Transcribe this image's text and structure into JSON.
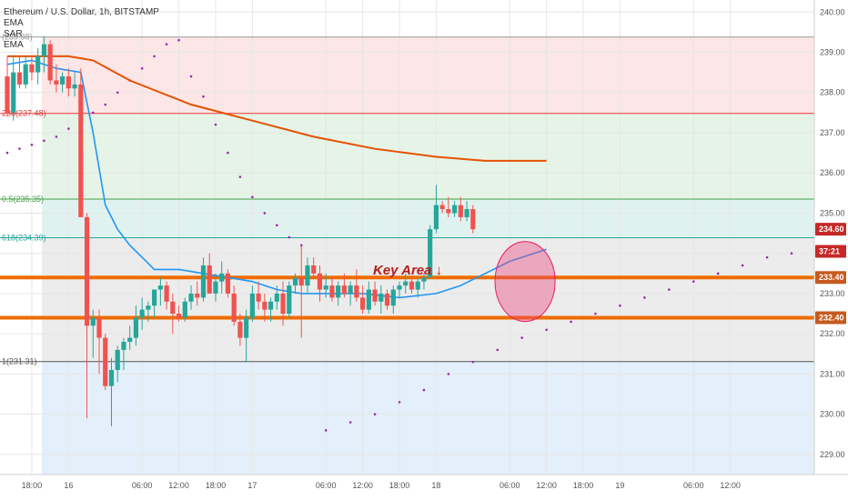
{
  "header": {
    "symbol_title": "Ethereum / U.S. Dollar, 1h, BITSTAMP",
    "indicators": [
      "EMA",
      "SAR",
      "EMA"
    ]
  },
  "annotation": {
    "text": "Key Area ↓",
    "color": "#b71c1c"
  },
  "price_badges": [
    {
      "label": "234.60",
      "value": 234.6,
      "bg": "#c62828",
      "fg": "#ffffff"
    },
    {
      "label": "37:21",
      "value": 234.05,
      "bg": "#c62828",
      "fg": "#ffffff"
    },
    {
      "label": "233.40",
      "value": 233.4,
      "bg": "#c65a1e",
      "fg": "#ffffff"
    },
    {
      "label": "232.40",
      "value": 232.4,
      "bg": "#c65a1e",
      "fg": "#ffffff"
    }
  ],
  "fib_levels": [
    {
      "label": "(239.38)",
      "value": 239.38,
      "color": "#999999"
    },
    {
      "label": "236(237.48)",
      "value": 237.48,
      "color": "#e53935"
    },
    {
      "label": "0.5(235.35)",
      "value": 235.35,
      "color": "#43a047"
    },
    {
      "label": "618(234.39)",
      "value": 234.39,
      "color": "#26a69a"
    },
    {
      "label": "1(231.31)",
      "value": 231.31,
      "color": "#555555"
    }
  ],
  "colors": {
    "up": "#26a69a",
    "down": "#ef5350",
    "ema_fast": "#2196f3",
    "ema_slow": "#e65100",
    "sar": "#9c27b0",
    "key_line": "#ef6c00",
    "circle_fill": "#ec407a",
    "circle_stroke": "#e91e63"
  },
  "chart_data": {
    "type": "candlestick",
    "title": "Ethereum / U.S. Dollar, 1h, BITSTAMP",
    "ylim": [
      228.5,
      240.3
    ],
    "x_range": [
      0,
      128
    ],
    "y_ticks": [
      "240.00",
      "239.00",
      "238.00",
      "237.00",
      "236.00",
      "235.00",
      "234.00",
      "233.00",
      "232.00",
      "231.00",
      "230.00",
      "229.00"
    ],
    "x_ticks": [
      {
        "label": "18:00",
        "x": 4
      },
      {
        "label": "16",
        "x": 10
      },
      {
        "label": "06:00",
        "x": 22
      },
      {
        "label": "12:00",
        "x": 28
      },
      {
        "label": "18:00",
        "x": 34
      },
      {
        "label": "17",
        "x": 40
      },
      {
        "label": "06:00",
        "x": 52
      },
      {
        "label": "12:00",
        "x": 58
      },
      {
        "label": "18:00",
        "x": 64
      },
      {
        "label": "18",
        "x": 70
      },
      {
        "label": "06:00",
        "x": 82
      },
      {
        "label": "12:00",
        "x": 88
      },
      {
        "label": "18:00",
        "x": 94
      },
      {
        "label": "19",
        "x": 100
      },
      {
        "label": "06:00",
        "x": 112
      },
      {
        "label": "12:00",
        "x": 118
      }
    ],
    "candles": [
      [
        238.4,
        238.9,
        237.4,
        237.5
      ],
      [
        237.5,
        238.9,
        237.3,
        238.5
      ],
      [
        238.5,
        238.9,
        238.1,
        238.2
      ],
      [
        238.2,
        238.9,
        238.1,
        238.7
      ],
      [
        238.7,
        238.9,
        238.3,
        238.5
      ],
      [
        238.5,
        239.1,
        238.2,
        238.9
      ],
      [
        238.9,
        239.4,
        238.5,
        239.2
      ],
      [
        239.2,
        239.3,
        238.2,
        238.3
      ],
      [
        238.3,
        238.7,
        238.0,
        238.2
      ],
      [
        238.2,
        238.5,
        238.0,
        238.4
      ],
      [
        238.4,
        238.6,
        237.9,
        238.1
      ],
      [
        238.1,
        238.5,
        237.9,
        238.2
      ],
      [
        238.2,
        238.6,
        235.0,
        234.9
      ],
      [
        234.9,
        235.0,
        229.9,
        232.2
      ],
      [
        232.2,
        232.6,
        231.4,
        232.4
      ],
      [
        232.4,
        232.6,
        231.0,
        231.9
      ],
      [
        231.9,
        232.0,
        230.6,
        230.7
      ],
      [
        230.7,
        231.4,
        229.7,
        231.1
      ],
      [
        231.1,
        231.7,
        230.8,
        231.6
      ],
      [
        231.6,
        231.9,
        231.1,
        231.8
      ],
      [
        231.8,
        232.2,
        231.6,
        231.9
      ],
      [
        231.9,
        232.7,
        231.7,
        232.4
      ],
      [
        232.4,
        232.9,
        232.1,
        232.6
      ],
      [
        232.6,
        232.8,
        232.3,
        232.7
      ],
      [
        232.7,
        233.1,
        232.4,
        233.1
      ],
      [
        233.1,
        233.4,
        232.7,
        233.2
      ],
      [
        233.2,
        233.3,
        232.6,
        232.8
      ],
      [
        232.8,
        233.0,
        232.0,
        232.5
      ],
      [
        232.5,
        232.7,
        232.3,
        232.4
      ],
      [
        232.4,
        232.9,
        232.3,
        232.8
      ],
      [
        232.8,
        233.2,
        232.6,
        233.0
      ],
      [
        233.0,
        233.3,
        232.7,
        232.9
      ],
      [
        232.9,
        233.9,
        232.8,
        233.7
      ],
      [
        233.7,
        234.0,
        233.0,
        233.0
      ],
      [
        233.0,
        233.5,
        232.8,
        233.3
      ],
      [
        233.3,
        233.8,
        233.0,
        233.5
      ],
      [
        233.5,
        233.6,
        232.9,
        233.0
      ],
      [
        233.0,
        233.2,
        232.2,
        232.3
      ],
      [
        232.3,
        232.5,
        231.7,
        231.9
      ],
      [
        231.9,
        232.6,
        231.3,
        232.4
      ],
      [
        232.4,
        233.2,
        232.3,
        233.0
      ],
      [
        233.0,
        233.3,
        232.6,
        232.8
      ],
      [
        232.8,
        233.0,
        232.3,
        232.6
      ],
      [
        232.6,
        232.9,
        232.3,
        232.8
      ],
      [
        232.8,
        233.2,
        232.6,
        233.0
      ],
      [
        233.0,
        233.3,
        232.2,
        232.5
      ],
      [
        232.5,
        233.3,
        232.4,
        233.2
      ],
      [
        233.2,
        233.5,
        233.0,
        233.4
      ],
      [
        233.4,
        234.2,
        231.9,
        233.2
      ],
      [
        233.2,
        233.9,
        233.0,
        233.7
      ],
      [
        233.7,
        233.9,
        233.4,
        233.5
      ],
      [
        233.5,
        233.7,
        232.8,
        233.1
      ],
      [
        233.1,
        233.5,
        232.9,
        233.2
      ],
      [
        233.2,
        233.4,
        232.8,
        232.9
      ],
      [
        232.9,
        233.3,
        232.7,
        233.2
      ],
      [
        233.2,
        233.5,
        232.9,
        233.0
      ],
      [
        233.0,
        233.3,
        232.7,
        233.2
      ],
      [
        233.2,
        233.6,
        232.8,
        232.9
      ],
      [
        232.9,
        233.2,
        232.5,
        232.6
      ],
      [
        232.6,
        233.3,
        232.5,
        233.1
      ],
      [
        233.1,
        233.3,
        232.7,
        232.8
      ],
      [
        232.8,
        233.2,
        232.5,
        233.0
      ],
      [
        233.0,
        233.1,
        232.6,
        232.7
      ],
      [
        232.7,
        233.2,
        232.5,
        233.1
      ],
      [
        233.1,
        233.3,
        232.9,
        233.2
      ],
      [
        233.2,
        233.5,
        233.0,
        233.3
      ],
      [
        233.3,
        233.4,
        233.0,
        233.1
      ],
      [
        233.1,
        233.4,
        232.9,
        233.3
      ],
      [
        233.3,
        233.5,
        233.1,
        233.4
      ],
      [
        233.4,
        234.7,
        233.4,
        234.6
      ],
      [
        234.6,
        235.7,
        234.5,
        235.2
      ],
      [
        235.2,
        235.3,
        235.0,
        235.1
      ],
      [
        235.1,
        235.4,
        234.9,
        235.0
      ],
      [
        235.0,
        235.3,
        234.9,
        235.2
      ],
      [
        235.2,
        235.4,
        234.8,
        234.9
      ],
      [
        234.9,
        235.3,
        234.8,
        235.1
      ],
      [
        235.1,
        235.2,
        234.5,
        234.6
      ]
    ],
    "ema_fast": [
      [
        0,
        238.7
      ],
      [
        4,
        238.8
      ],
      [
        8,
        238.6
      ],
      [
        12,
        238.5
      ],
      [
        14,
        237.0
      ],
      [
        16,
        235.2
      ],
      [
        18,
        234.6
      ],
      [
        20,
        234.2
      ],
      [
        22,
        233.9
      ],
      [
        24,
        233.6
      ],
      [
        28,
        233.6
      ],
      [
        32,
        233.5
      ],
      [
        36,
        233.4
      ],
      [
        40,
        233.3
      ],
      [
        44,
        233.1
      ],
      [
        48,
        233.0
      ],
      [
        52,
        233.0
      ],
      [
        58,
        233.0
      ],
      [
        64,
        232.9
      ],
      [
        70,
        233.0
      ],
      [
        74,
        233.2
      ],
      [
        78,
        233.5
      ],
      [
        82,
        233.8
      ],
      [
        88,
        234.1
      ]
    ],
    "ema_slow": [
      [
        0,
        238.9
      ],
      [
        10,
        238.9
      ],
      [
        14,
        238.8
      ],
      [
        20,
        238.3
      ],
      [
        30,
        237.7
      ],
      [
        40,
        237.3
      ],
      [
        50,
        236.9
      ],
      [
        60,
        236.6
      ],
      [
        70,
        236.4
      ],
      [
        78,
        236.3
      ],
      [
        88,
        236.3
      ]
    ],
    "sar": [
      [
        0,
        236.5
      ],
      [
        2,
        236.6
      ],
      [
        4,
        236.7
      ],
      [
        6,
        236.8
      ],
      [
        8,
        236.9
      ],
      [
        10,
        237.1
      ],
      [
        12,
        237.3
      ],
      [
        14,
        237.5
      ],
      [
        16,
        237.7
      ],
      [
        18,
        238.0
      ],
      [
        20,
        238.3
      ],
      [
        22,
        238.6
      ],
      [
        24,
        238.9
      ],
      [
        26,
        239.2
      ],
      [
        28,
        239.3
      ],
      [
        30,
        238.4
      ],
      [
        32,
        237.9
      ],
      [
        34,
        237.2
      ],
      [
        36,
        236.5
      ],
      [
        38,
        235.9
      ],
      [
        40,
        235.4
      ],
      [
        42,
        235.0
      ],
      [
        44,
        234.7
      ],
      [
        46,
        234.4
      ],
      [
        48,
        234.2
      ],
      [
        52,
        229.6
      ],
      [
        56,
        229.8
      ],
      [
        60,
        230.0
      ],
      [
        64,
        230.3
      ],
      [
        68,
        230.6
      ],
      [
        72,
        231.0
      ],
      [
        76,
        231.3
      ],
      [
        80,
        231.6
      ],
      [
        84,
        231.9
      ],
      [
        88,
        232.1
      ],
      [
        92,
        232.3
      ],
      [
        96,
        232.5
      ],
      [
        100,
        232.7
      ],
      [
        104,
        232.9
      ],
      [
        108,
        233.1
      ],
      [
        112,
        233.3
      ],
      [
        116,
        233.5
      ],
      [
        120,
        233.7
      ],
      [
        124,
        233.9
      ],
      [
        128,
        234.0
      ]
    ],
    "key_levels": [
      233.4,
      232.4
    ],
    "highlight_circle": {
      "x": 84.5,
      "y": 233.3
    }
  }
}
